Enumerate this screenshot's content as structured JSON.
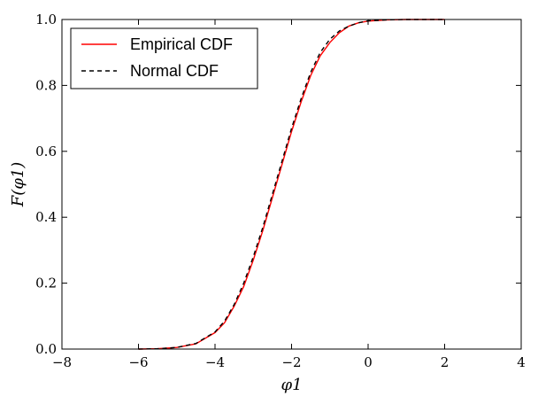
{
  "chart_data": {
    "type": "line",
    "xlabel": "φ1",
    "ylabel": "F(φ1)",
    "xlim": [
      -8,
      4
    ],
    "ylim": [
      0.0,
      1.0
    ],
    "xticks": [
      "−8",
      "−6",
      "−4",
      "−2",
      "0",
      "2",
      "4"
    ],
    "xtick_values": [
      -8,
      -6,
      -4,
      -2,
      0,
      2,
      4
    ],
    "yticks": [
      "0.0",
      "0.2",
      "0.4",
      "0.6",
      "0.8",
      "1.0"
    ],
    "ytick_values": [
      0,
      0.2,
      0.4,
      0.6,
      0.8,
      1.0
    ],
    "grid": false,
    "legend": {
      "position": "top-left"
    },
    "series": [
      {
        "name": "Empirical CDF",
        "color": "#ff0000",
        "style": "solid",
        "x": [
          -6.0,
          -5.5,
          -5.0,
          -4.5,
          -4.0,
          -3.75,
          -3.5,
          -3.25,
          -3.0,
          -2.75,
          -2.5,
          -2.25,
          -2.0,
          -1.75,
          -1.5,
          -1.25,
          -1.0,
          -0.75,
          -0.5,
          -0.25,
          0.0,
          0.5,
          1.0,
          1.5,
          2.0
        ],
        "y": [
          0.0,
          0.001,
          0.005,
          0.016,
          0.05,
          0.08,
          0.13,
          0.19,
          0.27,
          0.36,
          0.46,
          0.56,
          0.66,
          0.75,
          0.83,
          0.89,
          0.93,
          0.96,
          0.98,
          0.99,
          0.995,
          0.999,
          1.0,
          1.0,
          1.0
        ]
      },
      {
        "name": "Normal CDF",
        "color": "#000000",
        "style": "dashed",
        "x": [
          -6.0,
          -5.5,
          -5.0,
          -4.5,
          -4.0,
          -3.75,
          -3.5,
          -3.25,
          -3.0,
          -2.75,
          -2.5,
          -2.25,
          -2.0,
          -1.75,
          -1.5,
          -1.25,
          -1.0,
          -0.75,
          -0.5,
          -0.25,
          0.0,
          0.5,
          1.0,
          1.5,
          2.0
        ],
        "y": [
          0.0,
          0.001,
          0.005,
          0.017,
          0.052,
          0.085,
          0.135,
          0.2,
          0.28,
          0.37,
          0.47,
          0.57,
          0.67,
          0.76,
          0.84,
          0.9,
          0.94,
          0.965,
          0.98,
          0.99,
          0.996,
          0.999,
          1.0,
          1.0,
          1.0
        ]
      }
    ]
  }
}
